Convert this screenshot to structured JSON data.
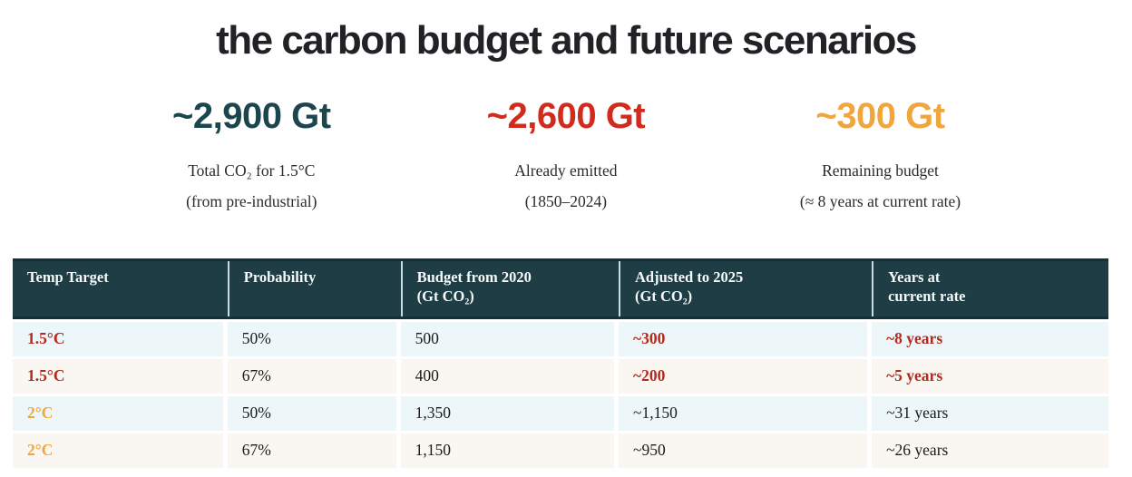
{
  "title": "the carbon budget and future scenarios",
  "stats": [
    {
      "value": "~2,900 Gt",
      "color": "#1c464e",
      "line1": "Total CO₂ for 1.5°C",
      "line2": "(from pre-industrial)"
    },
    {
      "value": "~2,600 Gt",
      "color": "#d12b1e",
      "line1": "Already emitted",
      "line2": "(1850–2024)"
    },
    {
      "value": "~300 Gt",
      "color": "#f0a63c",
      "line1": "Remaining budget",
      "line2": "(≈ 8 years at current rate)"
    }
  ],
  "table": {
    "headers": [
      "Temp Target",
      "Probability",
      "Budget from 2020\n(Gt CO₂)",
      "Adjusted to 2025\n(Gt CO₂)",
      "Years at\ncurrent rate"
    ],
    "rows": [
      [
        "1.5°C",
        "50%",
        "500",
        "~300",
        "~8 years"
      ],
      [
        "1.5°C",
        "67%",
        "400",
        "~200",
        "~5 years"
      ],
      [
        "2°C",
        "50%",
        "1,350",
        "~1,150",
        "~31 years"
      ],
      [
        "2°C",
        "67%",
        "1,150",
        "~950",
        "~26 years"
      ]
    ]
  },
  "colors": {
    "teal_dark": "#1c464e",
    "red_stat": "#d12b1e",
    "red_table": "#b32a1e",
    "orange": "#f0a63c",
    "header_bg": "#1e3d45",
    "header_border": "#14313a",
    "row_cool": "#edf6f9",
    "row_warm": "#faf6f2"
  }
}
